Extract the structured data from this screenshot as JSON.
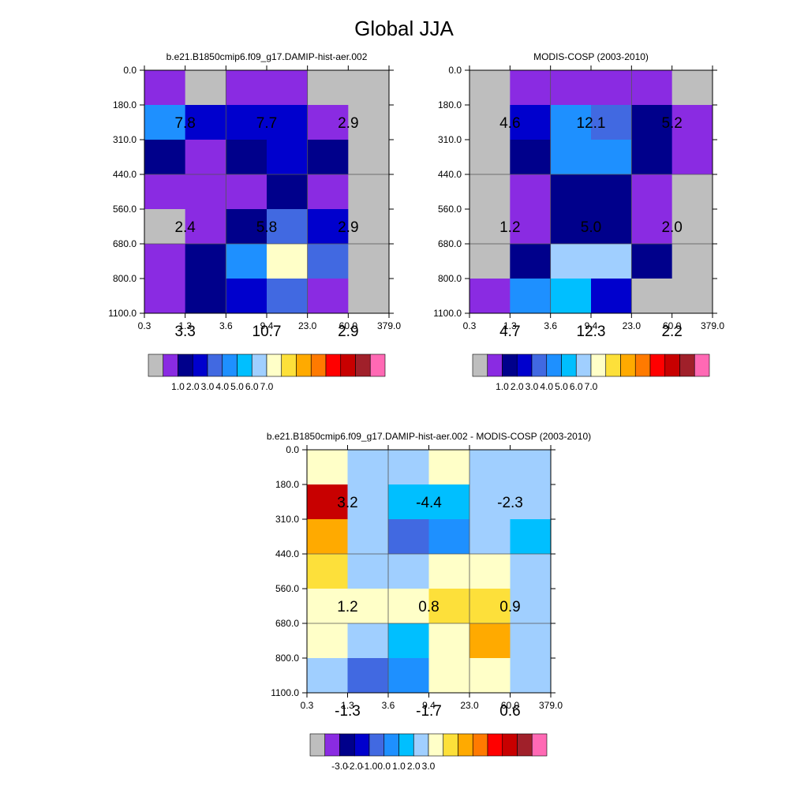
{
  "figure": {
    "title": "Global JJA",
    "pressure_ticks": [
      "0.0",
      "180.0",
      "310.0",
      "440.0",
      "560.0",
      "680.0",
      "800.0",
      "1100.0"
    ],
    "tau_ticks": [
      "0.3",
      "1.3",
      "3.6",
      "9.4",
      "23.0",
      "60.0",
      "379.0"
    ]
  },
  "chart_data": [
    {
      "type": "heatmap",
      "title": "b.e21.B1850cmip6.f09_g17.DAMIP-hist-aer.002",
      "xlabel": "",
      "ylabel": "",
      "x_bins": [
        "0.3",
        "1.3",
        "3.6",
        "9.4",
        "23.0",
        "60.0",
        "379.0"
      ],
      "y_bins": [
        "0.0",
        "180.0",
        "310.0",
        "440.0",
        "560.0",
        "680.0",
        "800.0",
        "1100.0"
      ],
      "grid": true,
      "cell_class_indices": [
        [
          1,
          0,
          1,
          1,
          0,
          0
        ],
        [
          5,
          3,
          3,
          3,
          1,
          0
        ],
        [
          2,
          1,
          2,
          3,
          2,
          0
        ],
        [
          1,
          1,
          1,
          2,
          1,
          0
        ],
        [
          0,
          1,
          2,
          4,
          3,
          0
        ],
        [
          1,
          2,
          5,
          8,
          4,
          0
        ],
        [
          1,
          2,
          3,
          4,
          1,
          0
        ]
      ],
      "block_labels": [
        {
          "text": "7.8",
          "col": 0,
          "row": 0
        },
        {
          "text": "7.7",
          "col": 1,
          "row": 0
        },
        {
          "text": "2.9",
          "col": 2,
          "row": 0
        },
        {
          "text": "2.4",
          "col": 0,
          "row": 1
        },
        {
          "text": "5.8",
          "col": 1,
          "row": 1
        },
        {
          "text": "2.9",
          "col": 2,
          "row": 1
        },
        {
          "text": "3.3",
          "col": 0,
          "row": 2
        },
        {
          "text": "10.7",
          "col": 1,
          "row": 2
        },
        {
          "text": "2.9",
          "col": 2,
          "row": 2
        }
      ],
      "colorbar": {
        "colors": [
          "#bebebe",
          "#8a2be2",
          "#00008b",
          "#0000cd",
          "#4169e1",
          "#1e90ff",
          "#00bfff",
          "#a0cfff",
          "#ffffc8",
          "#fde03a",
          "#ffaa00",
          "#ff7a00",
          "#ff0000",
          "#c80000",
          "#a0202a",
          "#ff69b4"
        ],
        "labels": [
          "1.0",
          "2.0",
          "3.0",
          "4.0",
          "5.0",
          "6.0",
          "7.0"
        ]
      }
    },
    {
      "type": "heatmap",
      "title": "MODIS-COSP (2003-2010)",
      "xlabel": "",
      "ylabel": "",
      "x_bins": [
        "0.3",
        "1.3",
        "3.6",
        "9.4",
        "23.0",
        "60.0",
        "379.0"
      ],
      "y_bins": [
        "0.0",
        "180.0",
        "310.0",
        "440.0",
        "560.0",
        "680.0",
        "800.0",
        "1100.0"
      ],
      "grid": true,
      "cell_class_indices": [
        [
          0,
          1,
          1,
          1,
          1,
          0
        ],
        [
          0,
          3,
          5,
          4,
          2,
          1
        ],
        [
          0,
          2,
          5,
          5,
          2,
          1
        ],
        [
          0,
          1,
          2,
          2,
          1,
          0
        ],
        [
          0,
          1,
          2,
          2,
          1,
          0
        ],
        [
          0,
          2,
          7,
          7,
          2,
          0
        ],
        [
          1,
          5,
          6,
          3,
          0,
          0
        ]
      ],
      "block_labels": [
        {
          "text": "4.6",
          "col": 0,
          "row": 0
        },
        {
          "text": "12.1",
          "col": 1,
          "row": 0
        },
        {
          "text": "5.2",
          "col": 2,
          "row": 0
        },
        {
          "text": "1.2",
          "col": 0,
          "row": 1
        },
        {
          "text": "5.0",
          "col": 1,
          "row": 1
        },
        {
          "text": "2.0",
          "col": 2,
          "row": 1
        },
        {
          "text": "4.7",
          "col": 0,
          "row": 2
        },
        {
          "text": "12.3",
          "col": 1,
          "row": 2
        },
        {
          "text": "2.2",
          "col": 2,
          "row": 2
        }
      ],
      "colorbar": {
        "colors": [
          "#bebebe",
          "#8a2be2",
          "#00008b",
          "#0000cd",
          "#4169e1",
          "#1e90ff",
          "#00bfff",
          "#a0cfff",
          "#ffffc8",
          "#fde03a",
          "#ffaa00",
          "#ff7a00",
          "#ff0000",
          "#c80000",
          "#a0202a",
          "#ff69b4"
        ],
        "labels": [
          "1.0",
          "2.0",
          "3.0",
          "4.0",
          "5.0",
          "6.0",
          "7.0"
        ]
      }
    },
    {
      "type": "heatmap",
      "title": "b.e21.B1850cmip6.f09_g17.DAMIP-hist-aer.002 - MODIS-COSP (2003-2010)",
      "xlabel": "",
      "ylabel": "",
      "x_bins": [
        "0.3",
        "1.3",
        "3.6",
        "9.4",
        "23.0",
        "60.0",
        "379.0"
      ],
      "y_bins": [
        "0.0",
        "180.0",
        "310.0",
        "440.0",
        "560.0",
        "680.0",
        "800.0",
        "1100.0"
      ],
      "grid": true,
      "cell_class_indices": [
        [
          8,
          7,
          7,
          8,
          7,
          7
        ],
        [
          13,
          7,
          6,
          6,
          7,
          7
        ],
        [
          10,
          7,
          4,
          5,
          7,
          6
        ],
        [
          9,
          7,
          7,
          8,
          8,
          7
        ],
        [
          8,
          8,
          8,
          9,
          9,
          7
        ],
        [
          8,
          7,
          6,
          8,
          10,
          7
        ],
        [
          7,
          4,
          5,
          8,
          8,
          7
        ]
      ],
      "block_labels": [
        {
          "text": "3.2",
          "col": 0,
          "row": 0
        },
        {
          "text": "-4.4",
          "col": 1,
          "row": 0
        },
        {
          "text": "-2.3",
          "col": 2,
          "row": 0
        },
        {
          "text": "1.2",
          "col": 0,
          "row": 1
        },
        {
          "text": "0.8",
          "col": 1,
          "row": 1
        },
        {
          "text": "0.9",
          "col": 2,
          "row": 1
        },
        {
          "text": "-1.3",
          "col": 0,
          "row": 2
        },
        {
          "text": "-1.7",
          "col": 1,
          "row": 2
        },
        {
          "text": "0.6",
          "col": 2,
          "row": 2
        }
      ],
      "colorbar": {
        "colors": [
          "#bebebe",
          "#8a2be2",
          "#00008b",
          "#0000cd",
          "#4169e1",
          "#1e90ff",
          "#00bfff",
          "#a0cfff",
          "#ffffc8",
          "#fde03a",
          "#ffaa00",
          "#ff7a00",
          "#ff0000",
          "#c80000",
          "#a0202a",
          "#ff69b4"
        ],
        "labels": [
          "-3.0",
          "-2.0",
          "-1.0",
          "0.0",
          "1.0",
          "2.0",
          "3.0"
        ]
      }
    }
  ]
}
